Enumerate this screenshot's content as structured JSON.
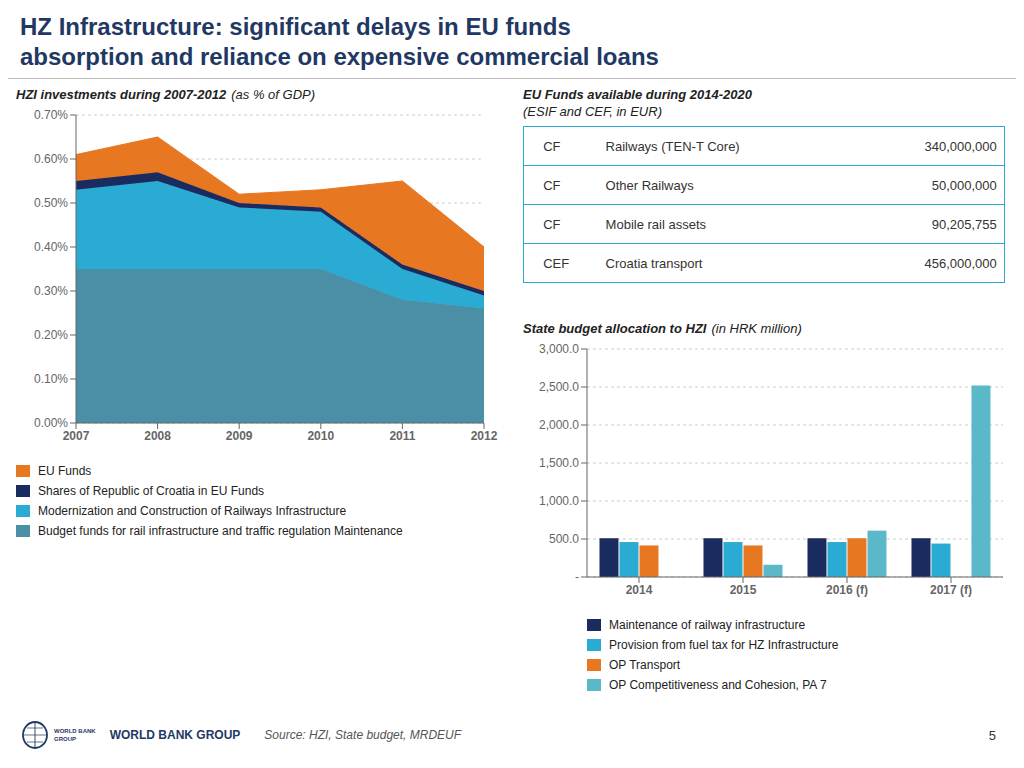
{
  "title": [
    "HZ Infrastructure: significant delays in EU funds",
    "absorption and reliance on expensive commercial loans"
  ],
  "title_color": "#1F3864",
  "annotations": [
    "WORLD BANK",
    "GROUP",
    "WORLD BANK GROUP",
    "Source: HZI, State budget, MRDEUF",
    "5"
  ],
  "chart_data": [
    {
      "type": "area",
      "title": "HZI investments during 2007-2012",
      "subtitle": "(as % of GDP)",
      "stacked": true,
      "grid": true,
      "legend": "bottom",
      "x": [
        2007,
        2008,
        2009,
        2010,
        2011,
        2012
      ],
      "xlim": [
        2007,
        2012
      ],
      "xticks": [
        2007,
        2008,
        2009,
        2010,
        2011,
        2012
      ],
      "ylim": [
        0,
        0.007
      ],
      "yticks": [
        {
          "value": 0,
          "label": "0.00%"
        },
        {
          "value": 0.001,
          "label": "0.10%"
        },
        {
          "value": 0.002,
          "label": "0.20%"
        },
        {
          "value": 0.003,
          "label": "0.30%"
        },
        {
          "value": 0.004,
          "label": "0.40%"
        },
        {
          "value": 0.005,
          "label": "0.50%"
        },
        {
          "value": 0.006,
          "label": "0.60%"
        },
        {
          "value": 0.007,
          "label": "0.70%"
        }
      ],
      "series": [
        {
          "name": "Budget funds for rail infrastructure and traffic regulation Maintenance",
          "color": "#4B8FA6",
          "values": [
            0.0035,
            0.0035,
            0.0035,
            0.0035,
            0.0028,
            0.0026
          ]
        },
        {
          "name": "Modernization and Construction of Railways Infrastructure",
          "color": "#29ABD4",
          "values": [
            0.0018,
            0.002,
            0.0014,
            0.0013,
            0.0007,
            0.0003
          ]
        },
        {
          "name": "Shares of  Republic of Croatia in EU Funds",
          "color": "#1A2B5F",
          "values": [
            0.0002,
            0.0002,
            0.0001,
            0.0001,
            0.0001,
            0.0001
          ]
        },
        {
          "name": "EU Funds",
          "color": "#E87722",
          "values": [
            0.0006,
            0.0008,
            0.0002,
            0.0004,
            0.0019,
            0.001
          ]
        }
      ]
    },
    {
      "type": "table",
      "title": "EU Funds available during 2014-2020",
      "subtitle": "(ESIF and CEF, in EUR)",
      "color": "#29ABD4",
      "rows": [
        [
          "CF",
          "Railways (TEN-T Core)",
          "340,000,000"
        ],
        [
          "CF",
          "Other Railways",
          "50,000,000"
        ],
        [
          "CF",
          "Mobile rail assets",
          "90,205,755"
        ],
        [
          "CEF",
          "Croatia transport",
          "456,000,000"
        ]
      ]
    },
    {
      "type": "bar",
      "title": "State budget allocation to HZI",
      "subtitle": "(in HRK million)",
      "grid": true,
      "legend": "bottom",
      "categories": [
        "2014",
        "2015",
        "2016 (f)",
        "2017 (f)"
      ],
      "ylim": [
        0,
        3000
      ],
      "yticks": [
        {
          "value": 0,
          "label": "-"
        },
        {
          "value": 500,
          "label": "500.0"
        },
        {
          "value": 1000,
          "label": "1,000.0"
        },
        {
          "value": 1500,
          "label": "1,500.0"
        },
        {
          "value": 2000,
          "label": "2,000.0"
        },
        {
          "value": 2500,
          "label": "2,500.0"
        },
        {
          "value": 3000,
          "label": "3,000.0"
        }
      ],
      "series": [
        {
          "name": "Maintenance of railway infrastructure",
          "color": "#1A2B5F",
          "values": [
            510,
            510,
            510,
            510
          ]
        },
        {
          "name": "Provision from fuel tax for HZ Infrastructure",
          "color": "#29ABD4",
          "values": [
            460,
            460,
            460,
            440
          ]
        },
        {
          "name": "OP Transport",
          "color": "#E87722",
          "values": [
            415,
            415,
            510,
            0
          ]
        },
        {
          "name": "OP Competitiveness and Cohesion, PA 7",
          "color": "#5BB8C8",
          "values": [
            0,
            160,
            610,
            2520
          ]
        }
      ]
    }
  ]
}
